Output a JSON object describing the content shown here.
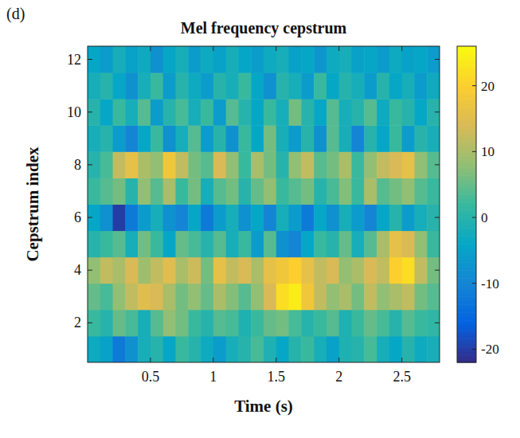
{
  "chart_data": {
    "type": "heatmap",
    "panel": "(d)",
    "title": "Mel frequency cepstrum",
    "x_label": "Time (s)",
    "y_label": "Cepstrum index",
    "x": [
      0.05,
      0.15,
      0.25,
      0.35,
      0.45,
      0.55,
      0.65,
      0.75,
      0.85,
      0.95,
      1.05,
      1.15,
      1.25,
      1.35,
      1.45,
      1.55,
      1.65,
      1.75,
      1.85,
      1.95,
      2.05,
      2.15,
      2.25,
      2.35,
      2.45,
      2.55,
      2.65,
      2.75
    ],
    "y": [
      1,
      2,
      3,
      4,
      5,
      6,
      7,
      8,
      9,
      10,
      11,
      12
    ],
    "xlim": [
      0,
      2.8
    ],
    "ylim": [
      0.5,
      12.5
    ],
    "xticks": [
      0.5,
      1,
      1.5,
      2,
      2.5
    ],
    "yticks": [
      2,
      4,
      6,
      8,
      10,
      12
    ],
    "z": [
      [
        -3,
        -5,
        -12,
        -8,
        -2,
        0,
        -4,
        2,
        0,
        -3,
        -6,
        -2,
        0,
        3,
        -1,
        -4,
        0,
        2,
        -2,
        -5,
        -1,
        0,
        3,
        -2,
        -4,
        0,
        -3,
        -2
      ],
      [
        2,
        0,
        5,
        3,
        -2,
        4,
        8,
        6,
        2,
        0,
        4,
        3,
        -1,
        2,
        5,
        6,
        3,
        0,
        2,
        4,
        -1,
        2,
        5,
        3,
        0,
        4,
        2,
        1
      ],
      [
        5,
        3,
        8,
        12,
        15,
        14,
        10,
        6,
        8,
        5,
        10,
        7,
        4,
        8,
        14,
        22,
        24,
        18,
        12,
        8,
        10,
        6,
        12,
        8,
        10,
        12,
        6,
        4
      ],
      [
        8,
        12,
        10,
        14,
        9,
        12,
        15,
        10,
        13,
        6,
        16,
        12,
        14,
        10,
        16,
        18,
        20,
        16,
        12,
        14,
        8,
        10,
        14,
        12,
        20,
        22,
        12,
        6
      ],
      [
        0,
        2,
        4,
        -2,
        6,
        2,
        -4,
        5,
        3,
        0,
        4,
        -2,
        2,
        -6,
        4,
        -8,
        -10,
        -4,
        2,
        0,
        5,
        -2,
        4,
        10,
        16,
        14,
        8,
        2
      ],
      [
        -4,
        -8,
        -20,
        -12,
        -6,
        -2,
        -8,
        -10,
        -4,
        -12,
        -6,
        -2,
        -8,
        -4,
        -10,
        -2,
        -6,
        -12,
        -4,
        -8,
        -2,
        -6,
        -10,
        -4,
        0,
        -6,
        -2,
        0
      ],
      [
        2,
        4,
        6,
        0,
        8,
        4,
        10,
        2,
        6,
        -2,
        4,
        6,
        0,
        5,
        8,
        2,
        4,
        6,
        0,
        3,
        7,
        2,
        10,
        4,
        6,
        8,
        4,
        2
      ],
      [
        0,
        3,
        12,
        16,
        10,
        8,
        18,
        12,
        6,
        4,
        14,
        8,
        2,
        10,
        6,
        0,
        8,
        12,
        4,
        6,
        10,
        2,
        8,
        12,
        14,
        16,
        8,
        4
      ],
      [
        -2,
        0,
        -6,
        -10,
        -4,
        2,
        -8,
        -2,
        4,
        -6,
        0,
        -8,
        2,
        -4,
        6,
        -2,
        -6,
        0,
        -8,
        4,
        -2,
        -10,
        0,
        -4,
        2,
        -6,
        0,
        -2
      ],
      [
        0,
        -4,
        2,
        -2,
        4,
        -6,
        0,
        3,
        -2,
        2,
        -6,
        4,
        0,
        -4,
        2,
        -2,
        6,
        0,
        -4,
        4,
        -2,
        0,
        4,
        -3,
        2,
        0,
        -4,
        0
      ],
      [
        -2,
        0,
        -4,
        -8,
        -2,
        2,
        -6,
        0,
        -3,
        -6,
        0,
        -2,
        2,
        -4,
        -8,
        0,
        -2,
        -6,
        2,
        -4,
        0,
        -2,
        -6,
        0,
        -4,
        -2,
        -6,
        -3
      ],
      [
        -4,
        -6,
        -2,
        -5,
        -3,
        -8,
        -4,
        -2,
        -6,
        -3,
        -5,
        -2,
        -4,
        -6,
        -3,
        -2,
        -5,
        -4,
        -7,
        -3,
        -2,
        -5,
        -4,
        -6,
        -3,
        -5,
        -4,
        -6
      ]
    ],
    "colorbar": {
      "range": [
        -22,
        26
      ],
      "ticks": [
        -20,
        -10,
        0,
        10,
        20
      ]
    }
  }
}
